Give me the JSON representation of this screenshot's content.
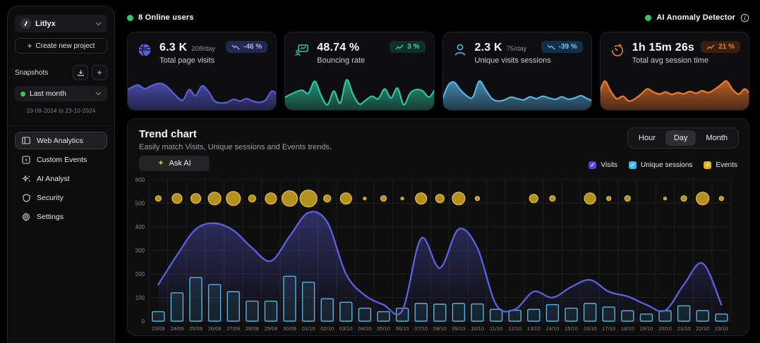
{
  "sidebar": {
    "project_name": "Litlyx",
    "create_project_label": "Create new project",
    "snapshots_label": "Snapshots",
    "snapshot_value": "Last month",
    "date_range": "23-09-2024 to 23-10-2024",
    "menu": [
      {
        "label": "Web Analytics",
        "icon": "layout-icon",
        "active": true
      },
      {
        "label": "Custom Events",
        "icon": "bolt-square-icon",
        "active": false
      },
      {
        "label": "AI Analyst",
        "icon": "sparkles-icon",
        "active": false
      },
      {
        "label": "Security",
        "icon": "shield-icon",
        "active": false
      },
      {
        "label": "Settings",
        "icon": "gear-icon",
        "active": false
      }
    ]
  },
  "topbar": {
    "online_users": "8 Online users",
    "anomaly_detector": "AI Anomaly Detector",
    "status_color": "#35c468"
  },
  "stat_cards": [
    {
      "value": "6.3 K",
      "rate": "208/day",
      "label": "Total page visits",
      "badge": "-46 %",
      "trend": "down",
      "icon": "globe-icon",
      "color": "#5a5ed8",
      "spark": [
        55,
        68,
        75,
        63,
        72,
        80,
        78,
        60,
        38,
        25,
        60,
        40,
        72,
        55,
        22,
        16,
        18,
        28,
        22,
        30,
        22,
        18,
        25,
        55,
        40
      ]
    },
    {
      "value": "48.74 %",
      "rate": "",
      "label": "Bouncing rate",
      "badge": "3 %",
      "trend": "up",
      "icon": "presentation-icon",
      "color": "#2fc49e",
      "spark": [
        30,
        42,
        52,
        58,
        48,
        88,
        40,
        10,
        55,
        15,
        92,
        45,
        12,
        25,
        38,
        30,
        62,
        32,
        65,
        10,
        48,
        60,
        55,
        35,
        65
      ]
    },
    {
      "value": "2.3 K",
      "rate": "75/day",
      "label": "Unique visits sessions",
      "badge": "-39 %",
      "trend": "down",
      "icon": "person-icon",
      "color": "#56b3e2",
      "spark": [
        12,
        70,
        85,
        60,
        40,
        35,
        88,
        60,
        30,
        22,
        26,
        35,
        30,
        26,
        36,
        30,
        38,
        32,
        28,
        36,
        28,
        32,
        40,
        30,
        22
      ]
    },
    {
      "value": "1h 15m 26s",
      "rate": "",
      "label": "Total avg session time",
      "badge": "21 %",
      "trend": "up",
      "icon": "timer-icon",
      "color": "#f0792f",
      "spark": [
        35,
        88,
        55,
        30,
        38,
        22,
        30,
        45,
        62,
        52,
        45,
        52,
        44,
        50,
        46,
        54,
        48,
        56,
        50,
        60,
        75,
        88,
        60,
        45,
        62,
        40
      ]
    }
  ],
  "trend": {
    "title": "Trend chart",
    "subtitle": "Easily match Visits, Unique sessions and Events trends.",
    "ask_ai_label": "Ask AI",
    "range_buttons": [
      "Hour",
      "Day",
      "Month"
    ],
    "active_range": "Day",
    "legend": [
      {
        "label": "Visits",
        "color": "#4f46e5"
      },
      {
        "label": "Unique sessions",
        "color": "#38bdf8"
      },
      {
        "label": "Events",
        "color": "#eab308"
      }
    ]
  },
  "chart_data": {
    "type": "mixed",
    "title": "Trend chart",
    "x": [
      "23/09",
      "24/09",
      "25/09",
      "26/09",
      "27/09",
      "28/09",
      "29/09",
      "30/09",
      "01/10",
      "02/10",
      "03/10",
      "04/10",
      "05/10",
      "06/10",
      "07/10",
      "08/10",
      "09/10",
      "10/10",
      "11/10",
      "12/10",
      "13/10",
      "14/10",
      "15/10",
      "16/10",
      "17/10",
      "18/10",
      "19/10",
      "20/10",
      "21/10",
      "22/10",
      "23/10"
    ],
    "ylim": [
      0,
      600
    ],
    "yticks": [
      0,
      100,
      200,
      300,
      400,
      500,
      600
    ],
    "grid": true,
    "legend_position": "top-right",
    "series": [
      {
        "name": "Visits",
        "type": "line",
        "color": "#5a5ed8",
        "values": [
          155,
          280,
          390,
          415,
          385,
          310,
          255,
          360,
          460,
          420,
          200,
          110,
          70,
          45,
          350,
          225,
          390,
          310,
          70,
          50,
          125,
          100,
          145,
          175,
          125,
          105,
          70,
          45,
          155,
          245,
          70
        ]
      },
      {
        "name": "Unique sessions",
        "type": "bar",
        "color": "#56b3e2",
        "values": [
          40,
          120,
          185,
          155,
          125,
          85,
          85,
          190,
          165,
          95,
          80,
          55,
          40,
          55,
          75,
          72,
          75,
          73,
          50,
          46,
          50,
          70,
          55,
          75,
          60,
          44,
          30,
          44,
          65,
          45,
          30
        ]
      },
      {
        "name": "Events",
        "type": "bubble",
        "color": "#eab308",
        "bubble_row_value": 520,
        "sizes": [
          4,
          7,
          7,
          9,
          10,
          5,
          8,
          11,
          12,
          5,
          8,
          2,
          4,
          2,
          8,
          6,
          9,
          3,
          0,
          0,
          6,
          4,
          0,
          8,
          3,
          4,
          0,
          2,
          4,
          9,
          3
        ]
      }
    ]
  }
}
